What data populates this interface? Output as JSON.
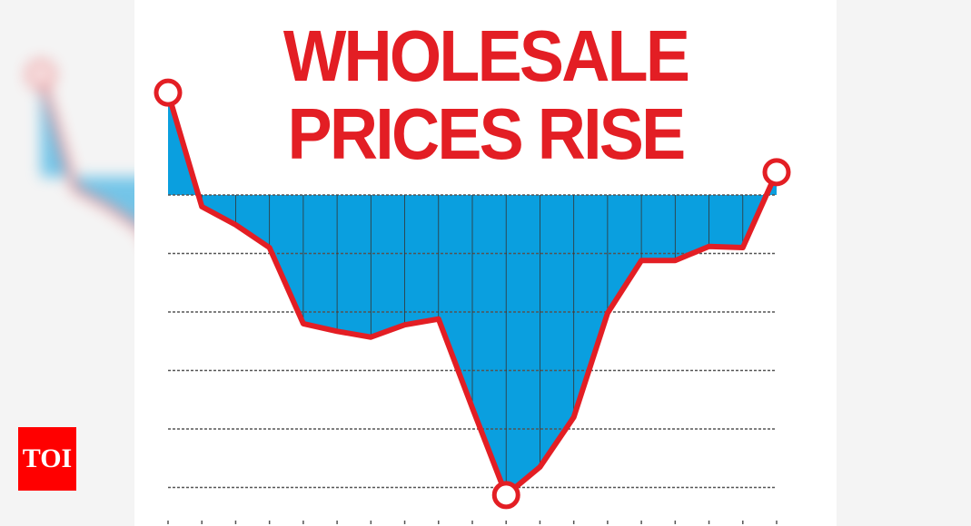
{
  "logo": {
    "text": "TOI",
    "color": "#ff0000"
  },
  "chart_data": {
    "type": "area",
    "title": "WHOLESALE PRICES RISE",
    "title_lines": [
      "WHOLESALE",
      "PRICES RISE"
    ],
    "xlabel": "",
    "ylabel": "",
    "grid": true,
    "ylim": [
      -5.3,
      1.9
    ],
    "baseline": 0,
    "colors": {
      "line": "#e31e24",
      "fill": "#0a9fdf",
      "title": "#e31e24"
    },
    "values": [
      1.75,
      -0.2,
      -0.51,
      -0.9,
      -2.2,
      -2.33,
      -2.43,
      -2.22,
      -2.12,
      -3.64,
      -5.13,
      -4.65,
      -3.8,
      -2.02,
      -1.12,
      -1.12,
      -0.88,
      -0.9,
      0.39
    ],
    "highlighted_points": [
      0,
      10,
      18
    ]
  }
}
